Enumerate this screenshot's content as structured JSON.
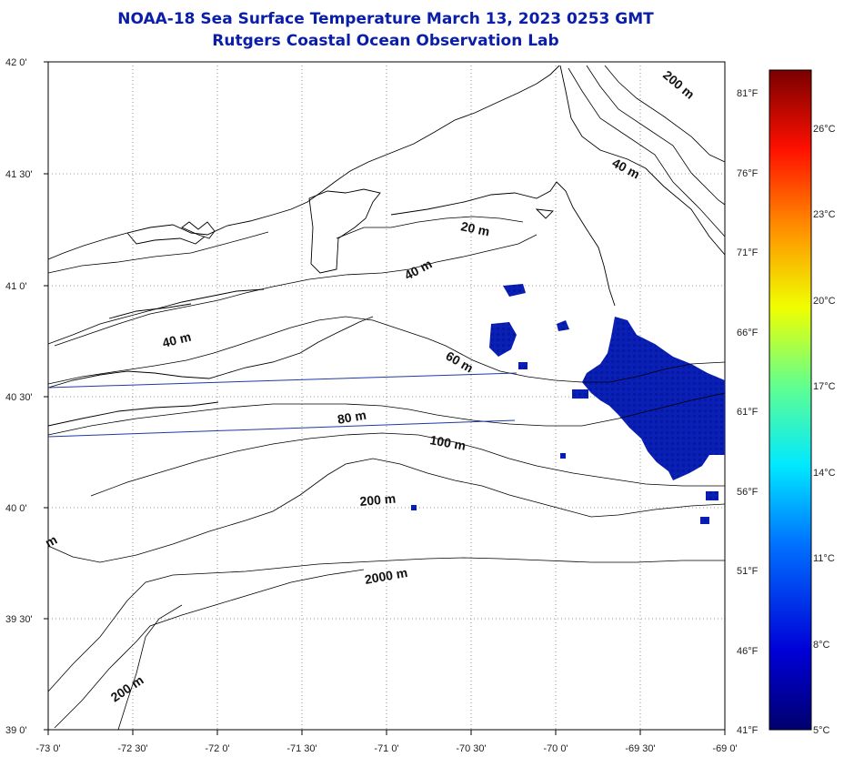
{
  "header": {
    "title": "NOAA-18 Sea Surface Temperature March 13, 2023 0253 GMT",
    "subtitle": "Rutgers Coastal Ocean Observation Lab"
  },
  "map": {
    "lon_min": -73.0,
    "lon_max": -69.0,
    "lat_min": 39.0,
    "lat_max": 42.0,
    "grid": true,
    "lat_labels": [
      "42 0'",
      "41 30'",
      "41 0'",
      "40 30'",
      "40 0'",
      "39 30'",
      "39 0'"
    ],
    "lon_labels": [
      "-73 0'",
      "-72 30'",
      "-72 0'",
      "-71 30'",
      "-71 0'",
      "-70 30'",
      "-70 0'",
      "-69 30'",
      "-69 0'"
    ],
    "contour_labels": [
      "200 m",
      "40 m",
      "20 m",
      "40 m",
      "40 m",
      "60 m",
      "80 m",
      "100 m",
      "200 m",
      "2000 m",
      "200 m",
      "m"
    ],
    "colors": {
      "title": "#0a1ea8",
      "land_lines": "#000000",
      "sst_cold": "#0a1fb5",
      "track_lines": "#1f3aa8"
    }
  },
  "colorbar": {
    "celsius_labels": [
      "26°C",
      "23°C",
      "20°C",
      "17°C",
      "14°C",
      "11°C",
      "8°C",
      "5°C"
    ],
    "fahrenheit_labels": [
      "81°F",
      "76°F",
      "71°F",
      "66°F",
      "61°F",
      "56°F",
      "51°F",
      "46°F",
      "41°F"
    ],
    "range_c": [
      5,
      28
    ],
    "colors": [
      "#00007a",
      "#0000ff",
      "#0080ff",
      "#00ffff",
      "#80ff80",
      "#ffff00",
      "#ff8000",
      "#ff0000",
      "#7a0000"
    ]
  }
}
